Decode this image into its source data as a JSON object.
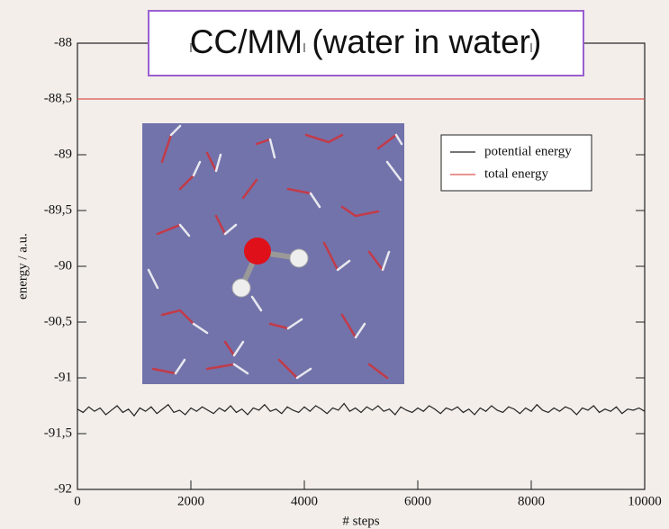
{
  "chart_data": {
    "type": "line",
    "title": "CC/MM (water in water)",
    "x_label": "# steps",
    "y_label": "energy / a.u.",
    "xlim": [
      0,
      10000
    ],
    "xticks": [
      0,
      2000,
      4000,
      6000,
      8000,
      10000
    ],
    "ylim": [
      -92,
      -88
    ],
    "yticks": [
      -88,
      {
        "value": -88.5,
        "label": "-88,5"
      },
      -89,
      {
        "value": -89.5,
        "label": "-89,5"
      },
      -90,
      {
        "value": -90.5,
        "label": "-90,5"
      },
      -91,
      {
        "value": -91.5,
        "label": "-91,5"
      },
      -92
    ],
    "legend": "upper right",
    "series": [
      {
        "name": "potential energy",
        "color": "#222222",
        "x": [
          0,
          100,
          200,
          300,
          400,
          500,
          600,
          700,
          800,
          900,
          1000,
          1100,
          1200,
          1300,
          1400,
          1500,
          1600,
          1700,
          1800,
          1900,
          2000,
          2100,
          2200,
          2300,
          2400,
          2500,
          2600,
          2700,
          2800,
          2900,
          3000,
          3100,
          3200,
          3300,
          3400,
          3500,
          3600,
          3700,
          3800,
          3900,
          4000,
          4100,
          4200,
          4300,
          4400,
          4500,
          4600,
          4700,
          4800,
          4900,
          5000,
          5100,
          5200,
          5300,
          5400,
          5500,
          5600,
          5700,
          5800,
          5900,
          6000,
          6100,
          6200,
          6300,
          6400,
          6500,
          6600,
          6700,
          6800,
          6900,
          7000,
          7100,
          7200,
          7300,
          7400,
          7500,
          7600,
          7700,
          7800,
          7900,
          8000,
          8100,
          8200,
          8300,
          8400,
          8500,
          8600,
          8700,
          8800,
          8900,
          9000,
          9100,
          9200,
          9300,
          9400,
          9500,
          9600,
          9700,
          9800,
          9900,
          10000
        ],
        "values": [
          -91.28,
          -91.31,
          -91.26,
          -91.3,
          -91.27,
          -91.33,
          -91.29,
          -91.25,
          -91.31,
          -91.28,
          -91.34,
          -91.27,
          -91.3,
          -91.26,
          -91.32,
          -91.28,
          -91.24,
          -91.31,
          -91.29,
          -91.33,
          -91.27,
          -91.3,
          -91.26,
          -91.29,
          -91.32,
          -91.27,
          -91.3,
          -91.25,
          -91.31,
          -91.28,
          -91.33,
          -91.27,
          -91.29,
          -91.24,
          -91.3,
          -91.28,
          -91.32,
          -91.26,
          -91.29,
          -91.31,
          -91.26,
          -91.3,
          -91.25,
          -91.28,
          -91.32,
          -91.27,
          -91.29,
          -91.23,
          -91.3,
          -91.27,
          -91.31,
          -91.26,
          -91.29,
          -91.25,
          -91.3,
          -91.28,
          -91.33,
          -91.26,
          -91.29,
          -91.31,
          -91.27,
          -91.3,
          -91.25,
          -91.28,
          -91.32,
          -91.27,
          -91.29,
          -91.26,
          -91.31,
          -91.28,
          -91.33,
          -91.27,
          -91.3,
          -91.25,
          -91.29,
          -91.31,
          -91.26,
          -91.28,
          -91.32,
          -91.27,
          -91.3,
          -91.24,
          -91.29,
          -91.31,
          -91.27,
          -91.3,
          -91.26,
          -91.28,
          -91.33,
          -91.27,
          -91.29,
          -91.25,
          -91.31,
          -91.28,
          -91.3,
          -91.26,
          -91.32,
          -91.28,
          -91.29,
          -91.27,
          -91.3
        ]
      },
      {
        "name": "total energy",
        "color": "#d9534f",
        "x": [
          0,
          10000
        ],
        "values": [
          -88.5,
          -88.5
        ]
      }
    ]
  }
}
